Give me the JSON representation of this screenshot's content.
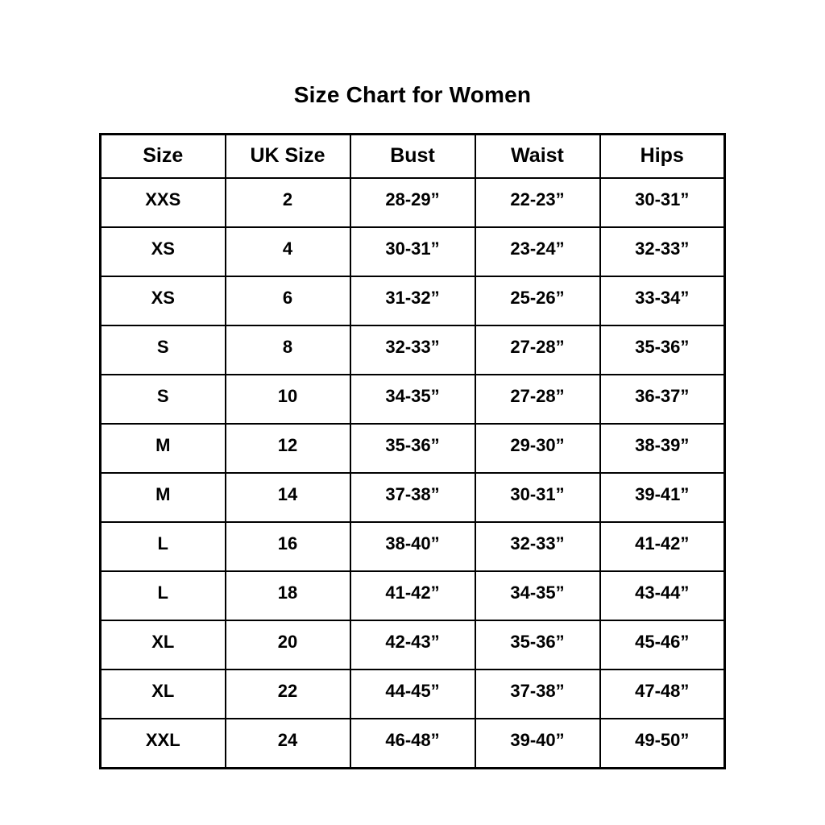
{
  "page": {
    "background_color": "#ffffff",
    "text_color": "#000000",
    "border_color": "#000000"
  },
  "chart_data": {
    "type": "table",
    "title": "Size Chart for Women",
    "columns": [
      "Size",
      "UK Size",
      "Bust",
      "Waist",
      "Hips"
    ],
    "rows": [
      [
        "XXS",
        "2",
        "28-29”",
        "22-23”",
        "30-31”"
      ],
      [
        "XS",
        "4",
        "30-31”",
        "23-24”",
        "32-33”"
      ],
      [
        "XS",
        "6",
        "31-32”",
        "25-26”",
        "33-34”"
      ],
      [
        "S",
        "8",
        "32-33”",
        "27-28”",
        "35-36”"
      ],
      [
        "S",
        "10",
        "34-35”",
        "27-28”",
        "36-37”"
      ],
      [
        "M",
        "12",
        "35-36”",
        "29-30”",
        "38-39”"
      ],
      [
        "M",
        "14",
        "37-38”",
        "30-31”",
        "39-41”"
      ],
      [
        "L",
        "16",
        "38-40”",
        "32-33”",
        "41-42”"
      ],
      [
        "L",
        "18",
        "41-42”",
        "34-35”",
        "43-44”"
      ],
      [
        "XL",
        "20",
        "42-43”",
        "35-36”",
        "45-46”"
      ],
      [
        "XL",
        "22",
        "44-45”",
        "37-38”",
        "47-48”"
      ],
      [
        "XXL",
        "24",
        "46-48”",
        "39-40”",
        "49-50”"
      ]
    ],
    "layout": {
      "grid": true,
      "header_row": true,
      "units": "inches"
    }
  }
}
